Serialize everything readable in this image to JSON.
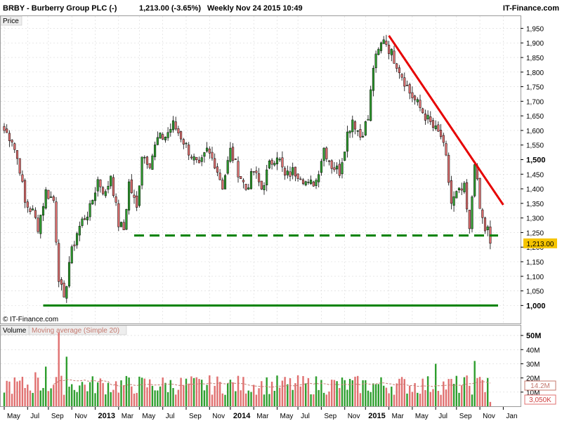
{
  "header": {
    "symbol_title": "BRBY - Burberry Group PLC (-)",
    "price_change": "1,213.00 (-3.65%)",
    "period_date": "Weekly  Nov 24 2015 10:49",
    "brand": "IT-Finance.com"
  },
  "price_panel": {
    "label": "Price",
    "copyright": "© IT-Finance.com",
    "last_price_label": "1,213.00",
    "y_ticks": [
      {
        "v": 1000,
        "label": "1,000",
        "bold": true
      },
      {
        "v": 1050,
        "label": "1,050"
      },
      {
        "v": 1100,
        "label": "1,100"
      },
      {
        "v": 1150,
        "label": "1,150"
      },
      {
        "v": 1200,
        "label": "1,200"
      },
      {
        "v": 1250,
        "label": "1,250"
      },
      {
        "v": 1300,
        "label": "1,300"
      },
      {
        "v": 1350,
        "label": "1,350"
      },
      {
        "v": 1400,
        "label": "1,400"
      },
      {
        "v": 1450,
        "label": "1,450"
      },
      {
        "v": 1500,
        "label": "1,500",
        "bold": true
      },
      {
        "v": 1550,
        "label": "1,550"
      },
      {
        "v": 1600,
        "label": "1,600"
      },
      {
        "v": 1650,
        "label": "1,650"
      },
      {
        "v": 1700,
        "label": "1,700"
      },
      {
        "v": 1750,
        "label": "1,750"
      },
      {
        "v": 1800,
        "label": "1,800"
      },
      {
        "v": 1850,
        "label": "1,850"
      },
      {
        "v": 1900,
        "label": "1,900"
      },
      {
        "v": 1950,
        "label": "1,950"
      }
    ]
  },
  "volume_panel": {
    "label_volume": "Volume",
    "label_ma": "Moving average (Simple 20)",
    "ma_value_label": "14.2M",
    "last_volume_label": "3,050K",
    "y_ticks": [
      {
        "v": 50,
        "label": "50M",
        "bold": true
      },
      {
        "v": 40,
        "label": "40M"
      },
      {
        "v": 30,
        "label": "30M"
      },
      {
        "v": 20,
        "label": "20M"
      },
      {
        "v": 10,
        "label": "10M"
      }
    ]
  },
  "x_axis": {
    "labels": [
      {
        "week": 0,
        "label": "May"
      },
      {
        "week": 9,
        "label": "Jul"
      },
      {
        "week": 17,
        "label": "Sep"
      },
      {
        "week": 26,
        "label": "Nov"
      },
      {
        "week": 35,
        "label": "2013",
        "bold": true
      },
      {
        "week": 44,
        "label": "Mar"
      },
      {
        "week": 52,
        "label": "May"
      },
      {
        "week": 61,
        "label": "Jul"
      },
      {
        "week": 70,
        "label": "Sep"
      },
      {
        "week": 79,
        "label": "Nov"
      },
      {
        "week": 87,
        "label": "2014",
        "bold": true
      },
      {
        "week": 96,
        "label": "Mar"
      },
      {
        "week": 105,
        "label": "May"
      },
      {
        "week": 113,
        "label": "Jul"
      },
      {
        "week": 122,
        "label": "Sep"
      },
      {
        "week": 131,
        "label": "Nov"
      },
      {
        "week": 139,
        "label": "2015",
        "bold": true
      },
      {
        "week": 148,
        "label": "Mar"
      },
      {
        "week": 157,
        "label": "May"
      },
      {
        "week": 166,
        "label": "Jul"
      },
      {
        "week": 174,
        "label": "Sep"
      },
      {
        "week": 183,
        "label": "Nov"
      },
      {
        "week": 192,
        "label": "Jan"
      }
    ]
  },
  "chart_data": {
    "type": "candlestick",
    "period": "weekly",
    "price_anchors": [
      [
        0,
        1600
      ],
      [
        3,
        1570
      ],
      [
        6,
        1470
      ],
      [
        8,
        1350
      ],
      [
        11,
        1320
      ],
      [
        13,
        1270
      ],
      [
        16,
        1390
      ],
      [
        19,
        1360
      ],
      [
        21,
        1100
      ],
      [
        23,
        1010
      ],
      [
        25,
        1150
      ],
      [
        28,
        1250
      ],
      [
        30,
        1290
      ],
      [
        33,
        1330
      ],
      [
        36,
        1430
      ],
      [
        39,
        1380
      ],
      [
        41,
        1450
      ],
      [
        44,
        1280
      ],
      [
        46,
        1260
      ],
      [
        48,
        1420
      ],
      [
        51,
        1330
      ],
      [
        53,
        1520
      ],
      [
        56,
        1490
      ],
      [
        59,
        1570
      ],
      [
        62,
        1580
      ],
      [
        65,
        1620
      ],
      [
        68,
        1580
      ],
      [
        71,
        1530
      ],
      [
        75,
        1470
      ],
      [
        78,
        1530
      ],
      [
        81,
        1490
      ],
      [
        84,
        1410
      ],
      [
        87,
        1530
      ],
      [
        90,
        1460
      ],
      [
        93,
        1400
      ],
      [
        96,
        1460
      ],
      [
        99,
        1400
      ],
      [
        102,
        1480
      ],
      [
        105,
        1520
      ],
      [
        108,
        1440
      ],
      [
        111,
        1460
      ],
      [
        114,
        1450
      ],
      [
        117,
        1410
      ],
      [
        120,
        1430
      ],
      [
        123,
        1540
      ],
      [
        126,
        1480
      ],
      [
        129,
        1460
      ],
      [
        132,
        1590
      ],
      [
        134,
        1640
      ],
      [
        137,
        1580
      ],
      [
        140,
        1640
      ],
      [
        142,
        1820
      ],
      [
        144,
        1870
      ],
      [
        146,
        1920
      ],
      [
        148,
        1880
      ],
      [
        151,
        1830
      ],
      [
        153,
        1790
      ],
      [
        156,
        1730
      ],
      [
        159,
        1690
      ],
      [
        162,
        1650
      ],
      [
        165,
        1610
      ],
      [
        168,
        1580
      ],
      [
        170,
        1500
      ],
      [
        172,
        1350
      ],
      [
        174,
        1380
      ],
      [
        177,
        1400
      ],
      [
        179,
        1250
      ],
      [
        181,
        1500
      ],
      [
        183,
        1330
      ],
      [
        185,
        1260
      ],
      [
        186,
        1260
      ],
      [
        187,
        1213
      ]
    ],
    "resistance_line": {
      "start": {
        "week": 148,
        "price": 1925
      },
      "end": {
        "week": 192,
        "price": 1345
      }
    },
    "support_line": {
      "price": 1240,
      "start_week": 50,
      "end_week": 190
    },
    "floor_line": {
      "price": 1000,
      "start_week": 15,
      "end_week": 190
    },
    "volume_ma_approx": 14.2,
    "volume_spikes": [
      [
        21,
        52
      ],
      [
        24,
        35
      ],
      [
        16,
        28
      ],
      [
        12,
        24
      ],
      [
        166,
        30
      ],
      [
        181,
        32
      ],
      [
        186,
        20
      ]
    ],
    "price_axis_range": [
      960,
      1975
    ],
    "volume_axis_range": [
      0,
      55
    ]
  },
  "colors": {
    "up": "#2e9e2e",
    "down": "#e07070",
    "wick": "#000000",
    "resistance": "#e60000",
    "support": "#008000",
    "grid": "#d8d8d8",
    "last_price_badge": "#f5c400",
    "ma_line": "#c4786e",
    "vol_badge_bg": "#ffffff"
  }
}
